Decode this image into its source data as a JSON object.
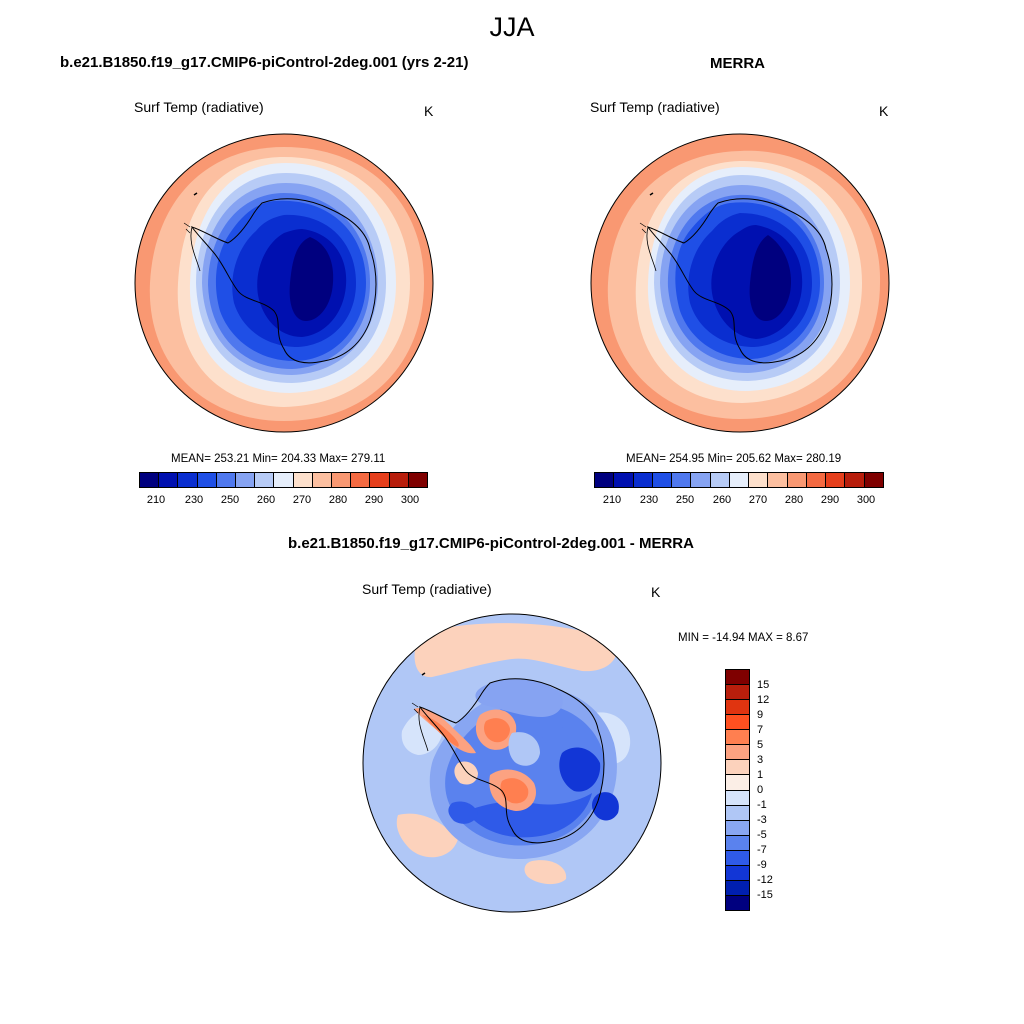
{
  "header": {
    "title": "JJA"
  },
  "panels": {
    "left": {
      "title": "b.e21.B1850.f19_g17.CMIP6-piControl-2deg.001 (yrs 2-21)",
      "variable": "Surf Temp (radiative)",
      "units": "K",
      "stats": "MEAN= 253.21  Min= 204.33  Max= 279.11"
    },
    "right": {
      "title": "MERRA",
      "variable": "Surf Temp (radiative)",
      "units": "K",
      "stats": "MEAN= 254.95  Min= 205.62  Max= 280.19"
    },
    "diff": {
      "title": "b.e21.B1850.f19_g17.CMIP6-piControl-2deg.001 - MERRA",
      "variable": "Surf Temp (radiative)",
      "units": "K",
      "stats": "MIN = -14.94 MAX =   8.67"
    }
  },
  "colorbar_abs": {
    "colors": [
      "#00007f",
      "#0010b0",
      "#0a2ed0",
      "#1f4fe6",
      "#4f78ee",
      "#86a3f2",
      "#b7cbf6",
      "#e6eefb",
      "#fde0cc",
      "#fcbfa0",
      "#f99872",
      "#f46a42",
      "#e63f1c",
      "#b81e0c",
      "#7f0000"
    ],
    "labels": [
      "210",
      "230",
      "250",
      "260",
      "270",
      "280",
      "290",
      "300"
    ]
  },
  "colorbar_diff": {
    "colors": [
      "#7f0000",
      "#b81e0c",
      "#e03410",
      "#ff5020",
      "#ff7f50",
      "#fca281",
      "#fcd2bc",
      "#fbeee6",
      "#d6e4fb",
      "#b0c7f6",
      "#88a6f2",
      "#5a82ee",
      "#2f5ae8",
      "#1236d6",
      "#001fb0",
      "#00007f"
    ],
    "labels": [
      "15",
      "12",
      "9",
      "7",
      "5",
      "3",
      "1",
      "0",
      "-1",
      "-3",
      "-5",
      "-7",
      "-9",
      "-12",
      "-15"
    ]
  }
}
